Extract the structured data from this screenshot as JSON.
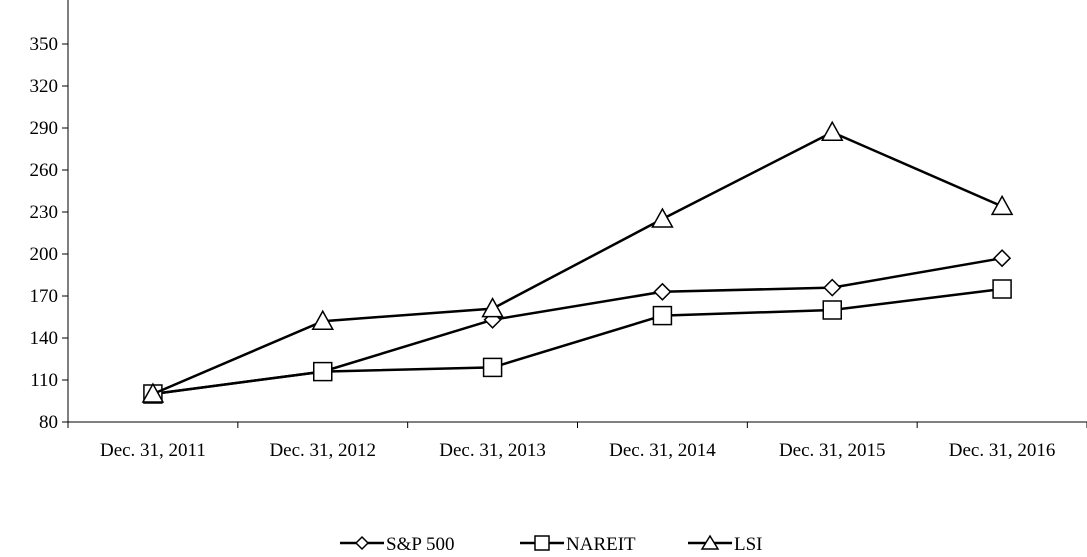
{
  "chart_data": {
    "type": "line",
    "categories": [
      "Dec. 31, 2011",
      "Dec. 31, 2012",
      "Dec. 31, 2013",
      "Dec. 31, 2014",
      "Dec. 31, 2015",
      "Dec. 31, 2016"
    ],
    "series": [
      {
        "name": "S&P 500",
        "marker": "diamond",
        "values": [
          100,
          116,
          153,
          173,
          176,
          197
        ]
      },
      {
        "name": "NAREIT",
        "marker": "square",
        "values": [
          100,
          116,
          119,
          156,
          160,
          175
        ]
      },
      {
        "name": "LSI",
        "marker": "triangle",
        "values": [
          100,
          152,
          161,
          225,
          287,
          234
        ]
      }
    ],
    "yticks": [
      80,
      110,
      140,
      170,
      200,
      230,
      260,
      290,
      320,
      350
    ],
    "ylim": [
      80,
      360
    ],
    "grid": false,
    "legend_position": "bottom-center",
    "title": "",
    "xlabel": "",
    "ylabel": "",
    "colors": {
      "line": "#000000",
      "background": "#ffffff"
    }
  }
}
